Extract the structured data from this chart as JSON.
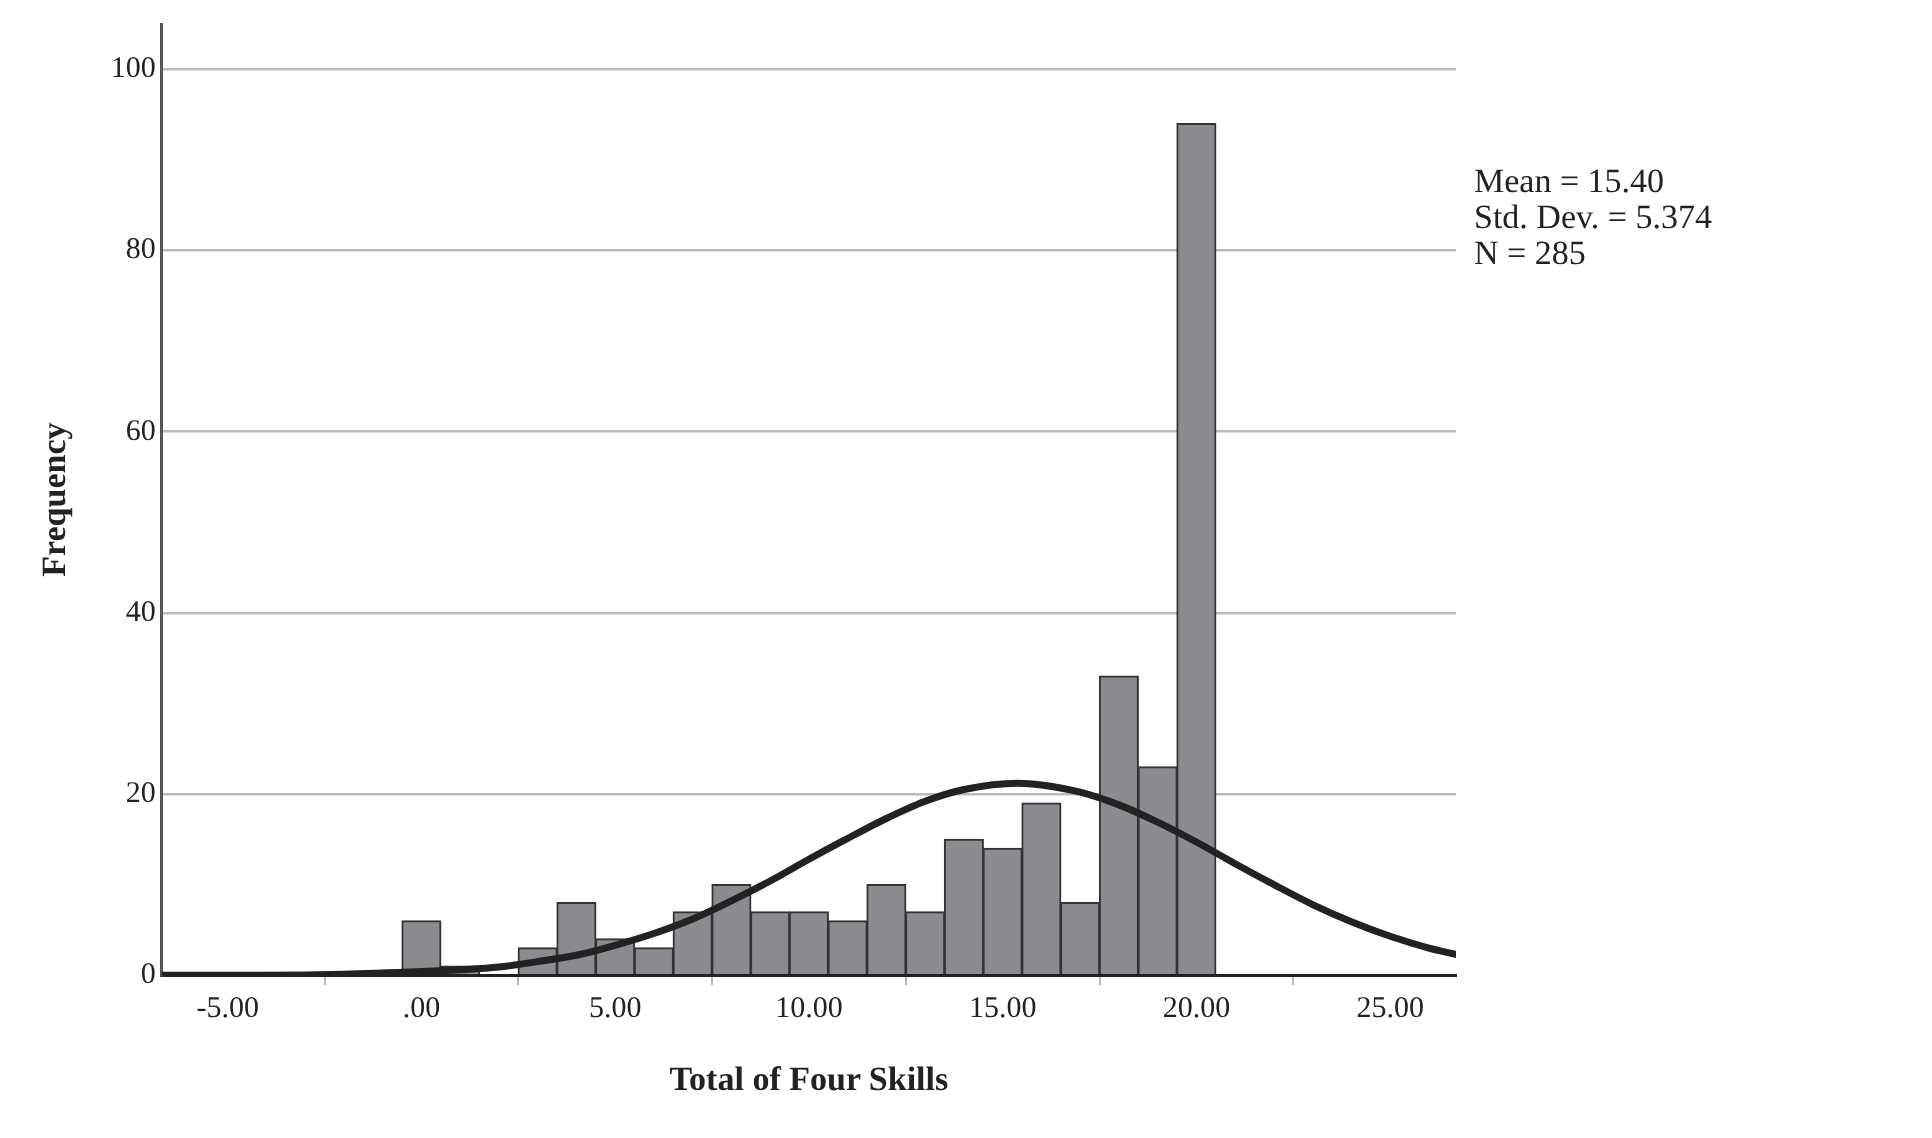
{
  "chart_data": {
    "type": "histogram",
    "xlabel": "Total of Four Skills",
    "ylabel": "Frequency",
    "bins": [
      -0.5,
      0.5,
      1.5,
      2.5,
      3.5,
      4.5,
      5.5,
      6.5,
      7.5,
      8.5,
      9.5,
      10.5,
      11.5,
      12.5,
      13.5,
      14.5,
      15.5,
      16.5,
      17.5,
      18.5,
      19.5,
      20.5
    ],
    "values": [
      6,
      1,
      0,
      3,
      8,
      4,
      3,
      7,
      10,
      7,
      7,
      6,
      10,
      7,
      15,
      14,
      19,
      8,
      33,
      23,
      94
    ],
    "color": "#8c8c90",
    "series": [
      {
        "type": "line",
        "color": "#222222",
        "x": [
          -6.7,
          -4,
          -2,
          0,
          1,
          2,
          3,
          4,
          5,
          6,
          7,
          8,
          9,
          10,
          11,
          12,
          13,
          14,
          15.4,
          16,
          17,
          18,
          19,
          20,
          21,
          22,
          23,
          24,
          25,
          26,
          26.7
        ],
        "values": [
          0,
          0,
          0.1,
          0.4,
          0.6,
          0.9,
          1.5,
          2.2,
          3.3,
          4.6,
          6.2,
          8.2,
          10.4,
          12.8,
          15.1,
          17.3,
          19.2,
          20.5,
          21.2,
          21,
          20.2,
          18.8,
          16.9,
          14.7,
          12.3,
          10,
          7.8,
          5.9,
          4.3,
          3,
          2.3
        ]
      }
    ],
    "xlim": [
      -6.7,
      26.7
    ],
    "xticks": [
      {
        "value": -5,
        "label": "-5.00"
      },
      {
        "value": 0,
        "label": ".00"
      },
      {
        "value": 5,
        "label": "5.00"
      },
      {
        "value": 10,
        "label": "10.00"
      },
      {
        "value": 15,
        "label": "15.00"
      },
      {
        "value": 20,
        "label": "20.00"
      },
      {
        "value": 25,
        "label": "25.00"
      }
    ],
    "ylim": [
      0,
      105
    ],
    "yticks": [
      0,
      20,
      40,
      60,
      80,
      100
    ],
    "grid": "y",
    "legend": false,
    "marker": "none",
    "annotations": [
      "Mean = 15.40",
      "Std. Dev. = 5.374",
      "N = 285"
    ]
  }
}
